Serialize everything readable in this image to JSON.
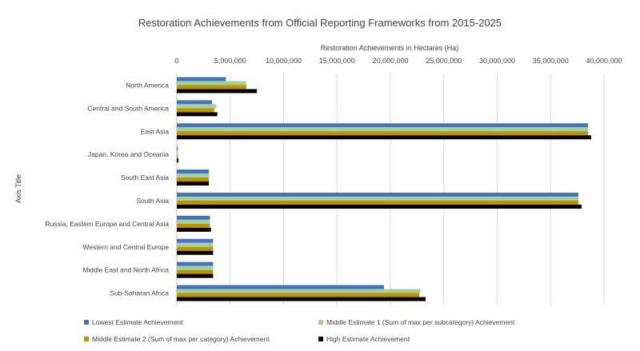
{
  "chart_data": {
    "type": "bar",
    "orientation": "horizontal",
    "title": "Restoration Achievements from Official Reporting Frameworks from 2015-2025",
    "xlabel": "Restoration Achievements in Hectares (Ha)",
    "ylabel": "Axis Title",
    "xlim": [
      0,
      40000000
    ],
    "xticks": [
      0,
      5000000,
      10000000,
      15000000,
      20000000,
      25000000,
      30000000,
      35000000,
      40000000
    ],
    "xtick_labels": [
      "0",
      "5,000,000",
      "10,000,000",
      "15,000,000",
      "20,000,000",
      "25,000,000",
      "30,000,000",
      "35,000,000",
      "40,000,000"
    ],
    "x_axis_position": "top",
    "grid": "vertical",
    "legend_position": "bottom",
    "categories": [
      "North America",
      "Central and South America",
      "East Asia",
      "Japan, Korea  and Oceania",
      "South East Asia",
      "South Asia",
      "Russia, Eastern Europe and Central Asia",
      "Western and Central Europe",
      "Middle East and North Africa",
      "Sub-Saharan Africa"
    ],
    "series": [
      {
        "name": "Lowest Estimate Achievement",
        "color": "#4472C4",
        "values": [
          4600000,
          3300000,
          38500000,
          100000,
          3000000,
          37600000,
          3100000,
          3400000,
          3400000,
          19400000
        ]
      },
      {
        "name": "Middle Estimate 1 (Sum of max per subcategory) Achievement",
        "color": "#A9D18E",
        "values": [
          6500000,
          3700000,
          38500000,
          100000,
          3000000,
          37600000,
          3100000,
          3400000,
          3400000,
          22800000
        ]
      },
      {
        "name": "Middle Estimate 2 (Sum of max per category) Achievement",
        "color": "#BF9000",
        "values": [
          6500000,
          3500000,
          38500000,
          100000,
          3000000,
          37600000,
          3100000,
          3400000,
          3400000,
          22700000
        ]
      },
      {
        "name": "High Estimate Achievement",
        "color": "#000000",
        "values": [
          7500000,
          3800000,
          38800000,
          150000,
          3000000,
          37900000,
          3200000,
          3400000,
          3400000,
          23300000
        ]
      }
    ]
  }
}
